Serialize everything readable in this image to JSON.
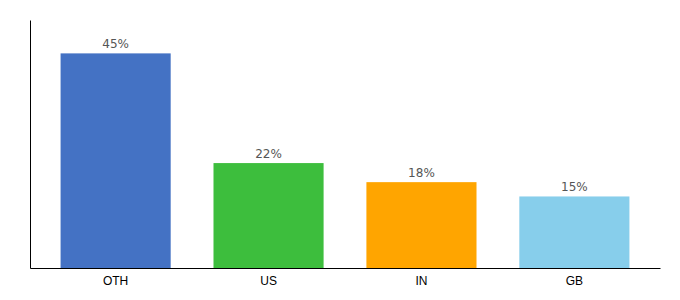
{
  "chart_data": {
    "type": "bar",
    "categories": [
      "OTH",
      "US",
      "IN",
      "GB"
    ],
    "values": [
      45,
      22,
      18,
      15
    ],
    "value_labels": [
      "45%",
      "22%",
      "18%",
      "15%"
    ],
    "colors": [
      "#4472C4",
      "#3DBE3D",
      "#FFA500",
      "#87CEEB"
    ],
    "ylim": [
      0,
      52
    ],
    "data_labels": true,
    "tick_labels": "x"
  }
}
